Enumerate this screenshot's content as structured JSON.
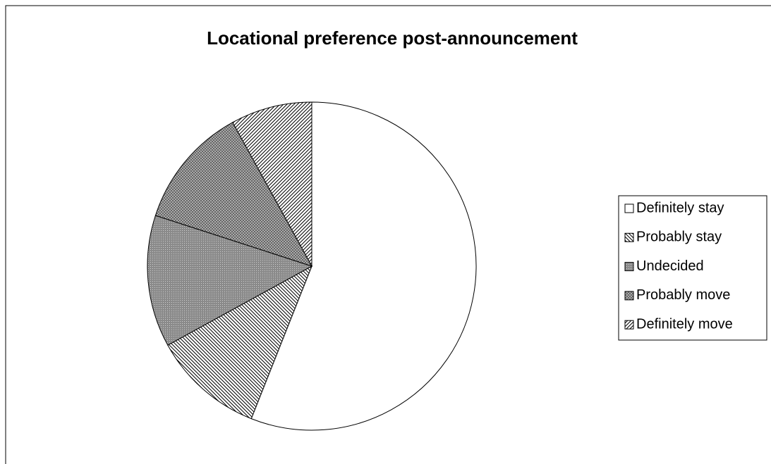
{
  "chart_data": {
    "type": "pie",
    "title": "Locational preference post-announcement",
    "categories": [
      "Definitely stay",
      "Probably stay",
      "Undecided",
      "Probably move",
      "Definitely move"
    ],
    "values": [
      56,
      11,
      13,
      12,
      8
    ]
  }
}
